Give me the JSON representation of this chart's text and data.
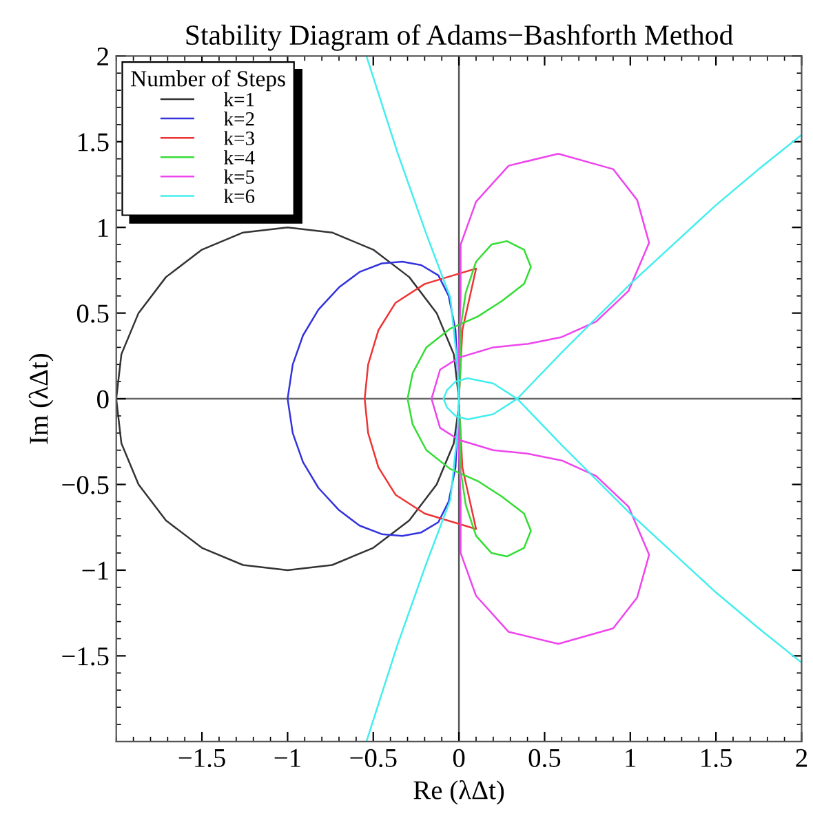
{
  "chart_data": {
    "type": "line",
    "title": "Stability Diagram of Adams−Bashforth Method",
    "xlabel": "Re (λΔt)",
    "ylabel": "Im (λΔt)",
    "legend_title": "Number of Steps",
    "legend": "top left",
    "grid": false,
    "marker": "none",
    "line_style": "solid",
    "xlim": [
      -2,
      2
    ],
    "ylim": [
      -2,
      2
    ],
    "xticks": [
      -1.5,
      -1,
      -0.5,
      0,
      0.5,
      1,
      1.5,
      2
    ],
    "yticks": [
      -1.5,
      -1,
      -0.5,
      0,
      0.5,
      1,
      1.5,
      2
    ],
    "ref_lines": [
      {
        "axis": "x",
        "value": 0,
        "color": "#555555"
      },
      {
        "axis": "y",
        "value": 0,
        "color": "#666666"
      }
    ],
    "series": [
      {
        "name": "k=1",
        "color": "#333333",
        "x": [
          0,
          -0.03,
          -0.13,
          -0.29,
          -0.5,
          -0.74,
          -1,
          -1.26,
          -1.5,
          -1.71,
          -1.87,
          -1.97,
          -2,
          -1.97,
          -1.87,
          -1.71,
          -1.5,
          -1.26,
          -1,
          -0.74,
          -0.5,
          -0.29,
          -0.13,
          -0.03,
          0
        ],
        "values": [
          0,
          0.26,
          0.5,
          0.71,
          0.87,
          0.97,
          1,
          0.97,
          0.87,
          0.71,
          0.5,
          0.26,
          0,
          -0.26,
          -0.5,
          -0.71,
          -0.87,
          -0.97,
          -1,
          -0.97,
          -0.87,
          -0.71,
          -0.5,
          -0.26,
          -0.04
        ]
      },
      {
        "name": "k=2",
        "color": "#3333dd",
        "x": [
          0,
          -0.01,
          -0.02,
          -0.06,
          -0.12,
          -0.22,
          -0.33,
          -0.45,
          -0.58,
          -0.7,
          -0.82,
          -0.91,
          -0.97,
          -1,
          -0.97,
          -0.91,
          -0.82,
          -0.7,
          -0.58,
          -0.45,
          -0.33,
          -0.22,
          -0.12,
          -0.06,
          -0.02,
          -0.01,
          0
        ],
        "values": [
          0,
          0.2,
          0.4,
          0.6,
          0.72,
          0.78,
          0.8,
          0.79,
          0.74,
          0.65,
          0.52,
          0.37,
          0.2,
          0,
          -0.2,
          -0.37,
          -0.52,
          -0.65,
          -0.74,
          -0.79,
          -0.8,
          -0.78,
          -0.72,
          -0.6,
          -0.4,
          -0.2,
          -0.04
        ]
      },
      {
        "name": "k=3",
        "color": "#ee3333",
        "x": [
          0,
          0.01,
          0.02,
          0.06,
          0.1,
          0,
          -0.2,
          -0.37,
          -0.47,
          -0.53,
          -0.55,
          -0.53,
          -0.47,
          -0.37,
          -0.2,
          0,
          0.1,
          0.06,
          0.02,
          0.01,
          0
        ],
        "values": [
          0,
          0.2,
          0.4,
          0.58,
          0.76,
          0.73,
          0.67,
          0.56,
          0.4,
          0.2,
          0,
          -0.2,
          -0.4,
          -0.56,
          -0.67,
          -0.73,
          -0.76,
          -0.58,
          -0.4,
          -0.2,
          -0.04
        ]
      },
      {
        "name": "k=4",
        "color": "#33dd33",
        "x": [
          0,
          0.01,
          0.01,
          0.04,
          0.1,
          0.19,
          0.28,
          0.38,
          0.42,
          0.38,
          0.25,
          0.11,
          -0.05,
          -0.19,
          -0.27,
          -0.3,
          -0.27,
          -0.19,
          -0.05,
          0.11,
          0.25,
          0.38,
          0.42,
          0.38,
          0.28,
          0.19,
          0.1,
          0.04,
          0.01,
          0.01,
          0
        ],
        "values": [
          0,
          0.2,
          0.42,
          0.62,
          0.8,
          0.9,
          0.92,
          0.87,
          0.77,
          0.67,
          0.57,
          0.48,
          0.41,
          0.3,
          0.15,
          0,
          -0.15,
          -0.3,
          -0.41,
          -0.48,
          -0.57,
          -0.67,
          -0.77,
          -0.87,
          -0.92,
          -0.9,
          -0.8,
          -0.62,
          -0.42,
          -0.2,
          -0.04
        ]
      },
      {
        "name": "k=5",
        "color": "#ee44ee",
        "x": [
          0,
          0,
          0.01,
          0.01,
          0.1,
          0.29,
          0.58,
          0.9,
          1.04,
          1.11,
          0.99,
          0.8,
          0.6,
          0.4,
          0.2,
          0,
          -0.11,
          -0.16,
          -0.11,
          0,
          0.2,
          0.4,
          0.6,
          0.8,
          0.99,
          1.11,
          1.04,
          0.9,
          0.58,
          0.29,
          0.1,
          0.01,
          0.01,
          0,
          0
        ],
        "values": [
          0,
          0.3,
          0.6,
          0.9,
          1.15,
          1.36,
          1.43,
          1.34,
          1.16,
          0.91,
          0.63,
          0.45,
          0.36,
          0.32,
          0.3,
          0.24,
          0.17,
          0,
          -0.17,
          -0.24,
          -0.3,
          -0.32,
          -0.36,
          -0.45,
          -0.63,
          -0.91,
          -1.16,
          -1.34,
          -1.43,
          -1.36,
          -1.15,
          -0.9,
          -0.6,
          -0.3,
          -0.04
        ]
      },
      {
        "name": "k=6",
        "color": "#44eeee",
        "x": [
          -0.54,
          -0.36,
          -0.19,
          -0.05,
          -0.01,
          0,
          -0.01,
          -0.05,
          -0.19,
          -0.36,
          -0.54,
          null,
          2,
          1.75,
          1.5,
          1.25,
          1.0,
          0.8,
          0.6,
          0.34,
          0.2,
          0.05,
          -0.02,
          -0.07,
          -0.09,
          -0.07,
          -0.02,
          0.05,
          0.2,
          0.34,
          0.6,
          0.8,
          1.0,
          1.25,
          1.5,
          1.75,
          2
        ],
        "values": [
          2,
          1.44,
          0.96,
          0.59,
          0.21,
          0,
          -0.21,
          -0.59,
          -0.96,
          -1.44,
          -2,
          null,
          1.54,
          1.34,
          1.13,
          0.9,
          0.67,
          0.47,
          0.27,
          0,
          -0.09,
          -0.12,
          -0.1,
          -0.05,
          0,
          0.05,
          0.1,
          0.12,
          0.09,
          0,
          -0.27,
          -0.47,
          -0.67,
          -0.9,
          -1.13,
          -1.34,
          -1.54
        ]
      }
    ]
  }
}
